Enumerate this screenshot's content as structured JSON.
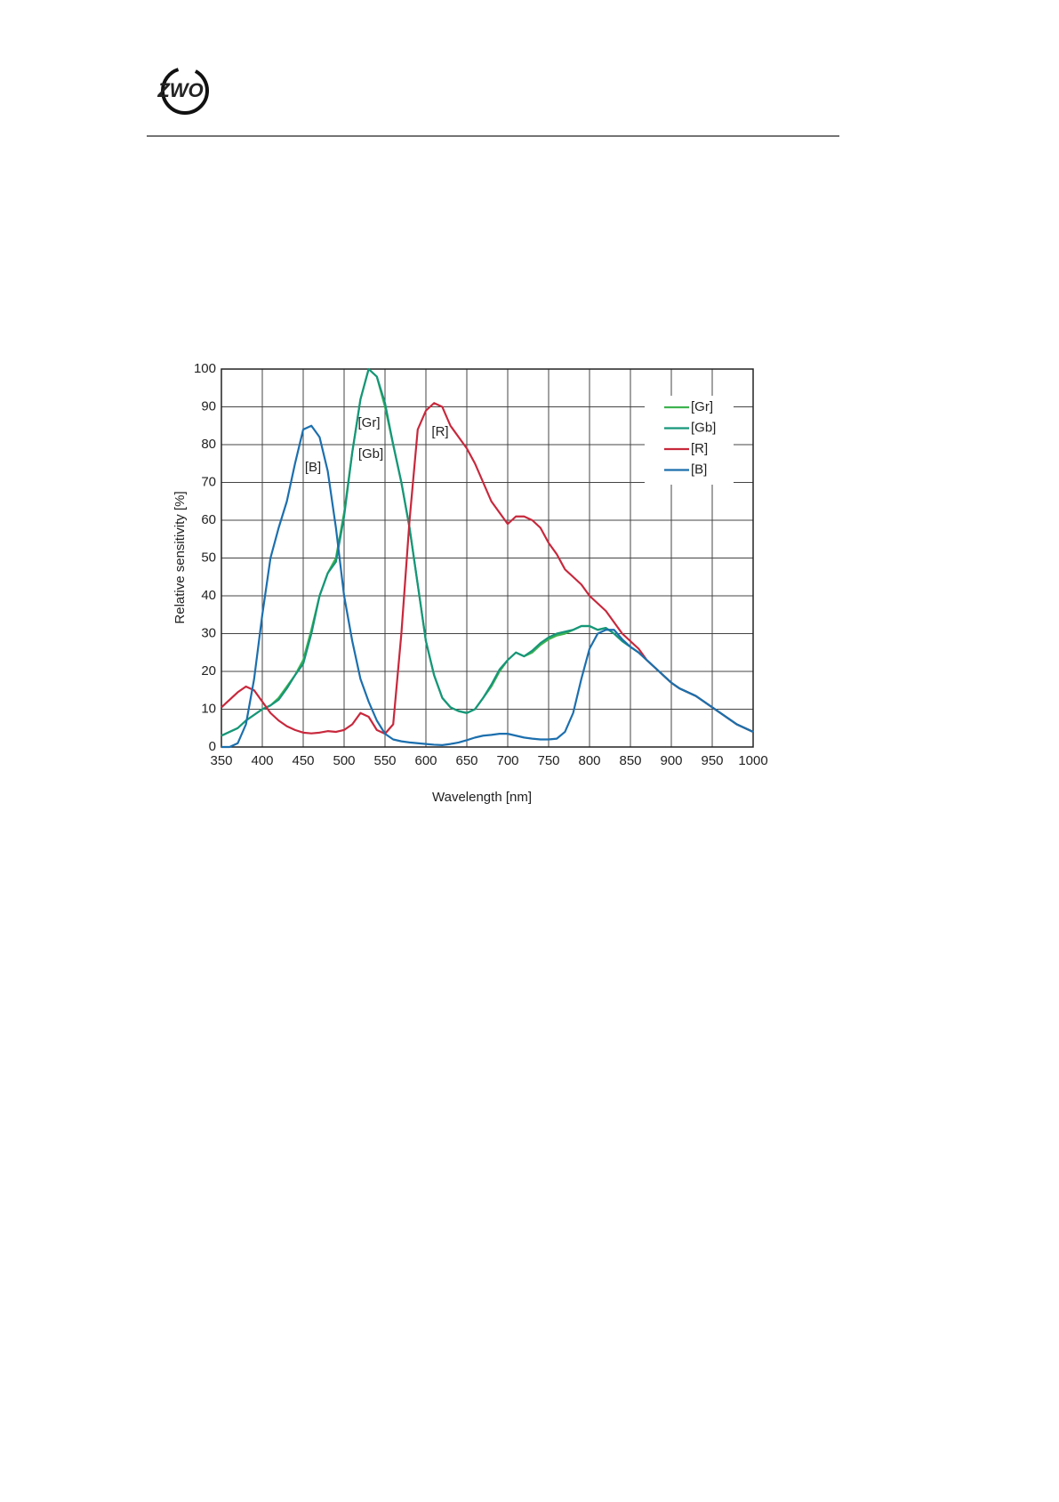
{
  "header": {
    "logo": "ZWO"
  },
  "chart_data": {
    "type": "line",
    "xlabel": "Wavelength [nm]",
    "ylabel": "Relative sensitivity [%]",
    "xlim": [
      350,
      1000
    ],
    "ylim": [
      0,
      100
    ],
    "xticks": [
      350,
      400,
      450,
      500,
      550,
      600,
      650,
      700,
      750,
      800,
      850,
      900,
      950,
      1000
    ],
    "yticks": [
      0,
      10,
      20,
      30,
      40,
      50,
      60,
      70,
      80,
      90,
      100
    ],
    "grid": true,
    "legend": "upper right",
    "annotations": [
      "[Gr]",
      "[Gb]",
      "[R]",
      "[B]"
    ],
    "x": [
      350,
      360,
      370,
      380,
      390,
      400,
      410,
      420,
      430,
      440,
      450,
      460,
      470,
      480,
      490,
      500,
      510,
      520,
      530,
      540,
      550,
      560,
      570,
      580,
      590,
      600,
      610,
      620,
      630,
      640,
      650,
      660,
      670,
      680,
      690,
      700,
      710,
      720,
      730,
      740,
      750,
      760,
      770,
      780,
      790,
      800,
      810,
      820,
      830,
      840,
      850,
      860,
      870,
      880,
      890,
      900,
      910,
      920,
      930,
      940,
      950,
      960,
      970,
      980,
      990,
      1000
    ],
    "series": [
      {
        "name": "[Gr]",
        "color": "#3fb34f",
        "values": [
          3,
          4,
          5,
          7,
          8.5,
          10,
          11,
          13,
          16,
          19,
          23,
          31,
          40,
          46,
          50,
          62,
          78,
          92,
          100,
          98,
          90,
          80,
          70,
          58,
          43,
          28,
          19,
          13,
          10.5,
          9.5,
          9,
          10,
          13,
          16,
          20,
          23,
          25,
          24,
          25,
          27,
          28.5,
          29.5,
          30,
          31,
          32,
          32,
          31,
          31.5,
          30,
          28,
          26.5,
          25,
          23,
          21,
          19,
          17,
          15.5,
          14.5,
          13.5,
          12,
          10.5,
          9,
          7.5,
          6,
          5,
          4
        ]
      },
      {
        "name": "[Gb]",
        "color": "#16967a",
        "values": [
          3,
          4,
          5,
          7,
          8.5,
          10,
          11,
          12.5,
          15.5,
          19,
          22,
          30,
          40,
          46,
          49,
          61,
          78,
          92,
          100,
          98,
          91,
          80,
          70,
          58,
          43,
          28,
          19,
          13,
          10.5,
          9.5,
          9,
          10,
          13,
          16.5,
          20.5,
          23,
          25,
          24,
          25.5,
          27.5,
          29,
          30,
          30.5,
          31,
          32,
          32,
          31,
          31.5,
          30,
          28,
          26.5,
          25,
          23,
          21,
          19,
          17,
          15.5,
          14.5,
          13.5,
          12,
          10.5,
          9,
          7.5,
          6,
          5,
          4
        ]
      },
      {
        "name": "[R]",
        "color": "#c8283c",
        "values": [
          10.5,
          12.5,
          14.5,
          16,
          15,
          12,
          9,
          7,
          5.5,
          4.5,
          3.8,
          3.6,
          3.8,
          4.2,
          4,
          4.5,
          6,
          9,
          8,
          4.5,
          3.5,
          6,
          30,
          60,
          84,
          89,
          91,
          90,
          85,
          82,
          79,
          75,
          70,
          65,
          62,
          59,
          61,
          61,
          60,
          58,
          54,
          51,
          47,
          45,
          43,
          40,
          38,
          36,
          33,
          30,
          28,
          26,
          23,
          21,
          19,
          17,
          15.5,
          14.5,
          13.5,
          12,
          10.5,
          9,
          7.5,
          6,
          5,
          4
        ]
      },
      {
        "name": "[B]",
        "color": "#1c6fae",
        "values": [
          0,
          0,
          1,
          6,
          18,
          35,
          50,
          58,
          65,
          75,
          84,
          85,
          82,
          73,
          58,
          40,
          28,
          18,
          12,
          7,
          3.5,
          2,
          1.5,
          1.2,
          1,
          0.8,
          0.6,
          0.5,
          0.8,
          1.2,
          1.8,
          2.5,
          3,
          3.2,
          3.5,
          3.5,
          3,
          2.5,
          2.2,
          2,
          2,
          2.2,
          4,
          9,
          18,
          26,
          30,
          31,
          31,
          28.5,
          26.5,
          25,
          23,
          21,
          19,
          17,
          15.5,
          14.5,
          13.5,
          12,
          10.5,
          9,
          7.5,
          6,
          5,
          4
        ]
      }
    ]
  }
}
